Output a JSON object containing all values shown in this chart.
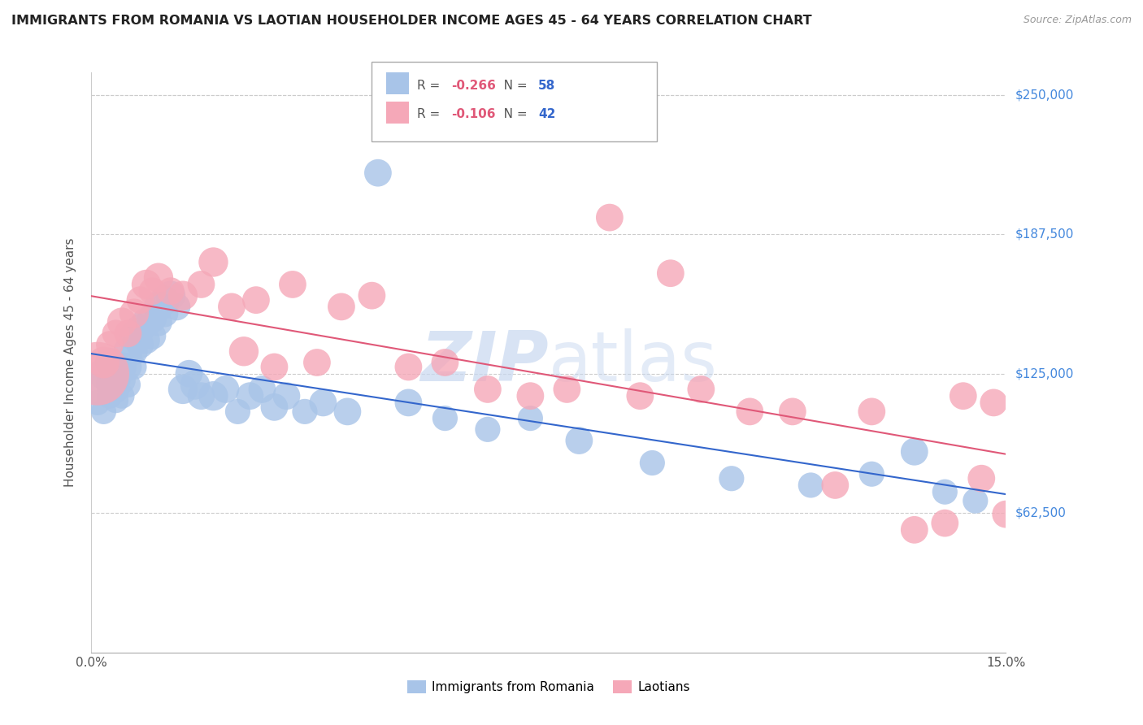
{
  "title": "IMMIGRANTS FROM ROMANIA VS LAOTIAN HOUSEHOLDER INCOME AGES 45 - 64 YEARS CORRELATION CHART",
  "source": "Source: ZipAtlas.com",
  "ylabel": "Householder Income Ages 45 - 64 years",
  "watermark": "ZIPatlas",
  "xlim": [
    0.0,
    0.15
  ],
  "ylim": [
    0,
    260000
  ],
  "yticks": [
    62500,
    125000,
    187500,
    250000
  ],
  "ytick_labels": [
    "$62,500",
    "$125,000",
    "$187,500",
    "$250,000"
  ],
  "legend_romania": "Immigrants from Romania",
  "legend_laotian": "Laotians",
  "romania_R": "-0.266",
  "romania_N": "58",
  "laotian_R": "-0.106",
  "laotian_N": "42",
  "romania_color": "#a8c4e8",
  "laotian_color": "#f5a8b8",
  "romania_line_color": "#3366cc",
  "laotian_line_color": "#e05878",
  "background_color": "#ffffff",
  "romania_x": [
    0.001,
    0.001,
    0.002,
    0.002,
    0.003,
    0.003,
    0.003,
    0.004,
    0.004,
    0.004,
    0.005,
    0.005,
    0.005,
    0.006,
    0.006,
    0.006,
    0.007,
    0.007,
    0.007,
    0.008,
    0.008,
    0.009,
    0.009,
    0.01,
    0.01,
    0.011,
    0.011,
    0.012,
    0.012,
    0.013,
    0.014,
    0.015,
    0.016,
    0.017,
    0.018,
    0.02,
    0.022,
    0.024,
    0.026,
    0.028,
    0.03,
    0.032,
    0.035,
    0.038,
    0.042,
    0.047,
    0.052,
    0.058,
    0.065,
    0.072,
    0.08,
    0.092,
    0.105,
    0.118,
    0.128,
    0.135,
    0.14,
    0.145
  ],
  "romania_y": [
    118000,
    112000,
    125000,
    108000,
    130000,
    120000,
    115000,
    122000,
    118000,
    113000,
    128000,
    122000,
    115000,
    135000,
    128000,
    120000,
    142000,
    135000,
    128000,
    145000,
    138000,
    148000,
    140000,
    150000,
    142000,
    155000,
    148000,
    158000,
    152000,
    160000,
    155000,
    118000,
    125000,
    120000,
    115000,
    115000,
    118000,
    108000,
    115000,
    118000,
    110000,
    115000,
    108000,
    112000,
    108000,
    215000,
    112000,
    105000,
    100000,
    105000,
    95000,
    85000,
    78000,
    75000,
    80000,
    90000,
    72000,
    68000
  ],
  "romania_size": [
    15,
    12,
    15,
    12,
    14,
    13,
    12,
    14,
    13,
    12,
    14,
    13,
    12,
    14,
    13,
    12,
    14,
    13,
    12,
    14,
    13,
    14,
    13,
    14,
    13,
    14,
    13,
    14,
    13,
    14,
    13,
    14,
    13,
    14,
    13,
    14,
    13,
    12,
    13,
    13,
    13,
    13,
    12,
    13,
    13,
    13,
    13,
    12,
    12,
    12,
    13,
    12,
    12,
    12,
    12,
    13,
    12,
    12
  ],
  "laotian_x": [
    0.001,
    0.002,
    0.003,
    0.004,
    0.005,
    0.006,
    0.007,
    0.008,
    0.009,
    0.01,
    0.011,
    0.013,
    0.015,
    0.018,
    0.02,
    0.023,
    0.025,
    0.027,
    0.03,
    0.033,
    0.037,
    0.041,
    0.046,
    0.052,
    0.058,
    0.065,
    0.072,
    0.078,
    0.085,
    0.09,
    0.095,
    0.1,
    0.108,
    0.115,
    0.122,
    0.128,
    0.135,
    0.14,
    0.143,
    0.146,
    0.148,
    0.15
  ],
  "laotian_y": [
    125000,
    130000,
    138000,
    143000,
    148000,
    143000,
    152000,
    158000,
    165000,
    162000,
    168000,
    162000,
    160000,
    165000,
    175000,
    155000,
    135000,
    158000,
    128000,
    165000,
    130000,
    155000,
    160000,
    128000,
    130000,
    118000,
    115000,
    118000,
    195000,
    115000,
    170000,
    118000,
    108000,
    108000,
    75000,
    108000,
    55000,
    58000,
    115000,
    78000,
    112000,
    62000
  ],
  "laotian_size": [
    30,
    15,
    13,
    13,
    14,
    13,
    14,
    13,
    14,
    13,
    14,
    13,
    14,
    13,
    14,
    13,
    14,
    13,
    13,
    13,
    13,
    13,
    13,
    13,
    13,
    13,
    13,
    13,
    13,
    13,
    13,
    13,
    13,
    13,
    13,
    13,
    13,
    13,
    13,
    13,
    13,
    13
  ]
}
